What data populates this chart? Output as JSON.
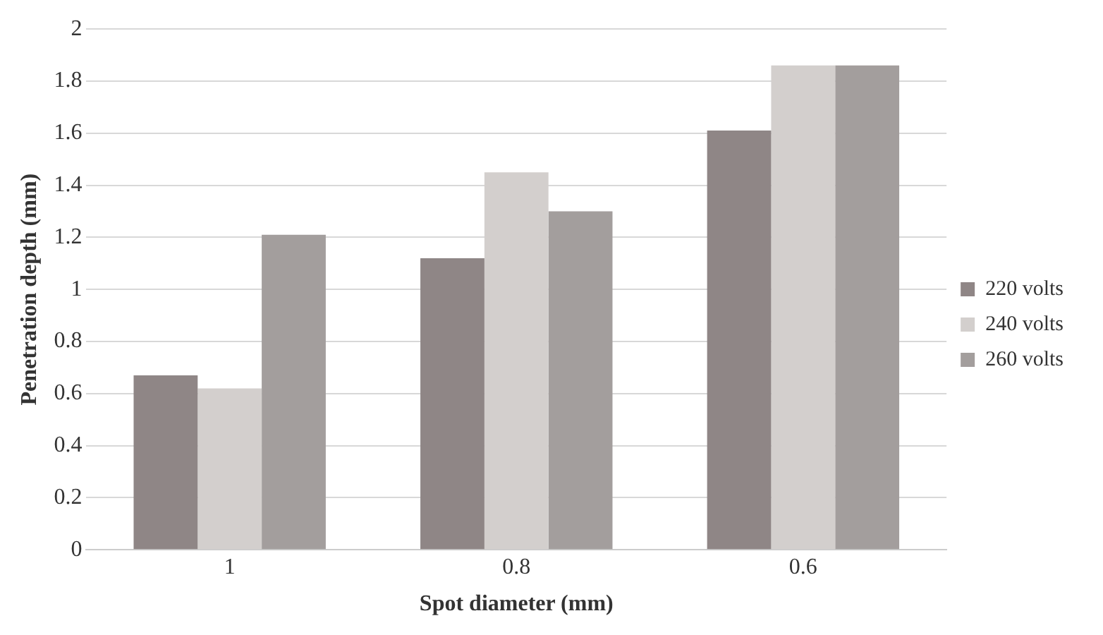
{
  "chart_data": {
    "type": "bar",
    "xlabel": "Spot diameter (mm)",
    "ylabel": "Penetration depth (mm)",
    "categories": [
      "1",
      "0.8",
      "0.6"
    ],
    "series": [
      {
        "name": "220 volts",
        "color": "#8f8686",
        "values": [
          0.67,
          1.12,
          1.61
        ]
      },
      {
        "name": "240 volts",
        "color": "#d3cfcd",
        "values": [
          0.62,
          1.45,
          1.86
        ]
      },
      {
        "name": "260 volts",
        "color": "#a39e9d",
        "values": [
          1.21,
          1.3,
          1.86
        ]
      }
    ],
    "ylim": [
      0,
      2
    ],
    "yticks": [
      0,
      0.2,
      0.4,
      0.6,
      0.8,
      1,
      1.2,
      1.4,
      1.6,
      1.8,
      2
    ],
    "grid": "y",
    "legend": "right"
  }
}
